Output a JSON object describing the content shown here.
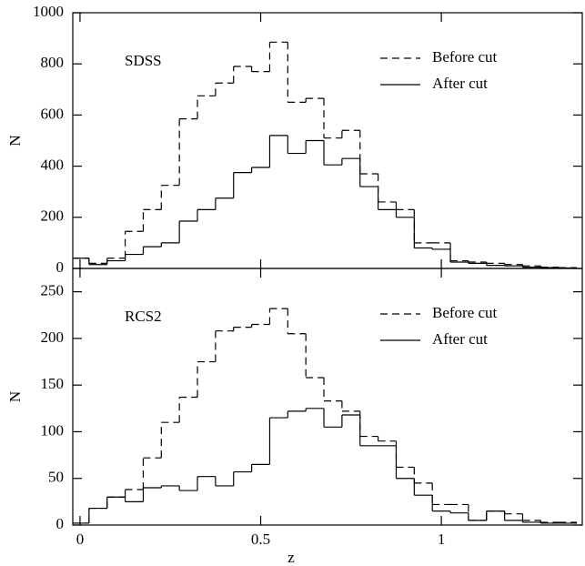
{
  "chart_data": [
    {
      "type": "histogram",
      "label": "SDSS",
      "ylabel": "N",
      "bins": [
        -0.025,
        0.025,
        0.075,
        0.125,
        0.175,
        0.225,
        0.275,
        0.325,
        0.375,
        0.425,
        0.475,
        0.525,
        0.575,
        0.625,
        0.675,
        0.725,
        0.775,
        0.825,
        0.875,
        0.925,
        0.975,
        1.025,
        1.075,
        1.125,
        1.175,
        1.225,
        1.275,
        1.325,
        1.375
      ],
      "series": [
        {
          "name": "Before cut",
          "color": "#000000",
          "linestyle": "dashed",
          "values": [
            40,
            20,
            40,
            145,
            230,
            325,
            585,
            675,
            725,
            790,
            770,
            885,
            650,
            665,
            510,
            540,
            370,
            260,
            230,
            100,
            100,
            30,
            25,
            20,
            15,
            10,
            5,
            3
          ]
        },
        {
          "name": "After cut",
          "color": "#000000",
          "linestyle": "solid",
          "values": [
            40,
            15,
            30,
            55,
            85,
            100,
            185,
            230,
            275,
            375,
            395,
            520,
            450,
            500,
            405,
            430,
            320,
            230,
            200,
            80,
            75,
            25,
            20,
            12,
            10,
            5,
            3,
            2
          ]
        }
      ],
      "xlim": [
        -0.02,
        1.39
      ],
      "ylim": [
        0,
        1000
      ],
      "yticks": [
        0,
        200,
        400,
        600,
        800,
        1000
      ],
      "xticks": [
        0,
        0.5,
        1
      ]
    },
    {
      "type": "histogram",
      "label": "RCS2",
      "ylabel": "N",
      "xlabel": "z",
      "bins": [
        -0.025,
        0.025,
        0.075,
        0.125,
        0.175,
        0.225,
        0.275,
        0.325,
        0.375,
        0.425,
        0.475,
        0.525,
        0.575,
        0.625,
        0.675,
        0.725,
        0.775,
        0.825,
        0.875,
        0.925,
        0.975,
        1.025,
        1.075,
        1.125,
        1.175,
        1.225,
        1.275,
        1.325,
        1.375
      ],
      "series": [
        {
          "name": "Before cut",
          "color": "#000000",
          "linestyle": "dashed",
          "values": [
            2,
            18,
            30,
            38,
            72,
            110,
            137,
            175,
            208,
            212,
            215,
            232,
            205,
            158,
            133,
            122,
            95,
            90,
            62,
            45,
            22,
            22,
            5,
            15,
            12,
            5,
            3,
            3
          ]
        },
        {
          "name": "After cut",
          "color": "#000000",
          "linestyle": "solid",
          "values": [
            2,
            18,
            30,
            25,
            40,
            42,
            37,
            52,
            42,
            57,
            65,
            115,
            122,
            125,
            105,
            118,
            85,
            85,
            50,
            32,
            15,
            13,
            5,
            15,
            5,
            3,
            2,
            2
          ]
        }
      ],
      "xlim": [
        -0.02,
        1.39
      ],
      "ylim": [
        0,
        275
      ],
      "yticks": [
        0,
        50,
        100,
        150,
        200,
        250
      ],
      "xticks": [
        0,
        0.5,
        1
      ]
    }
  ]
}
